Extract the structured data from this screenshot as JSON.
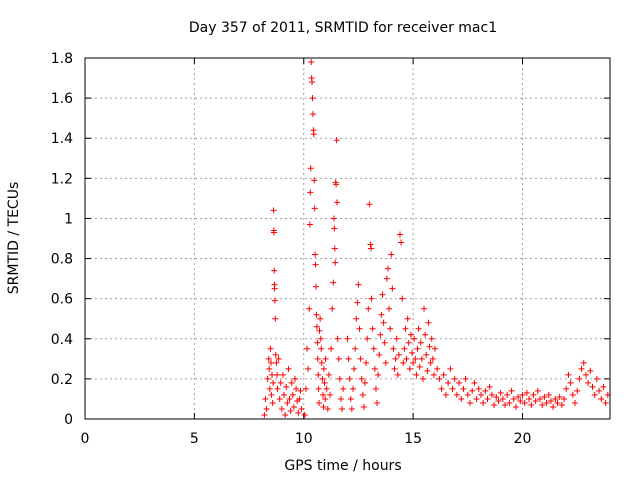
{
  "chart_data": {
    "type": "scatter",
    "title": "Day 357 of 2011, SRMTID for receiver mac1",
    "xlabel": "GPS time / hours",
    "ylabel": "SRMTID / TECUs",
    "xlim": [
      0,
      24
    ],
    "ylim": [
      0,
      1.8
    ],
    "xticks": [
      "0",
      "5",
      "10",
      "15",
      "20"
    ],
    "yticks": [
      "0",
      "0.2",
      "0.4",
      "0.6",
      "0.8",
      "1",
      "1.2",
      "1.4",
      "1.6",
      "1.8"
    ],
    "grid": true,
    "marker": "+",
    "color": "#ff0000",
    "series": [
      {
        "points": [
          [
            8.2,
            0.02
          ],
          [
            8.25,
            0.1
          ],
          [
            8.3,
            0.05
          ],
          [
            8.35,
            0.2
          ],
          [
            8.4,
            0.3
          ],
          [
            8.42,
            0.25
          ],
          [
            8.45,
            0.15
          ],
          [
            8.48,
            0.35
          ],
          [
            8.5,
            0.28
          ],
          [
            8.52,
            0.12
          ],
          [
            8.55,
            0.22
          ],
          [
            8.58,
            0.08
          ],
          [
            8.6,
            0.18
          ],
          [
            8.62,
            1.04
          ],
          [
            8.63,
            0.94
          ],
          [
            8.64,
            0.93
          ],
          [
            8.65,
            0.74
          ],
          [
            8.66,
            0.67
          ],
          [
            8.67,
            0.65
          ],
          [
            8.68,
            0.59
          ],
          [
            8.7,
            0.5
          ],
          [
            8.72,
            0.32
          ],
          [
            8.75,
            0.28
          ],
          [
            8.78,
            0.22
          ],
          [
            8.8,
            0.15
          ],
          [
            8.85,
            0.3
          ],
          [
            8.9,
            0.1
          ],
          [
            8.95,
            0.18
          ],
          [
            9.0,
            0.05
          ],
          [
            9.05,
            0.22
          ],
          [
            9.1,
            0.12
          ],
          [
            9.15,
            0.02
          ],
          [
            9.2,
            0.16
          ],
          [
            9.25,
            0.08
          ],
          [
            9.3,
            0.25
          ],
          [
            9.35,
            0.1
          ],
          [
            9.4,
            0.04
          ],
          [
            9.45,
            0.18
          ],
          [
            9.5,
            0.12
          ],
          [
            9.55,
            0.06
          ],
          [
            9.6,
            0.2
          ],
          [
            9.65,
            0.15
          ],
          [
            9.7,
            0.09
          ],
          [
            9.75,
            0.03
          ],
          [
            9.8,
            0.1
          ],
          [
            9.85,
            0.14
          ],
          [
            9.9,
            0.05
          ],
          [
            10.05,
            0.02
          ],
          [
            10.1,
            0.15
          ],
          [
            10.15,
            0.35
          ],
          [
            10.2,
            0.25
          ],
          [
            10.25,
            0.55
          ],
          [
            10.28,
            0.97
          ],
          [
            10.3,
            1.13
          ],
          [
            10.32,
            1.25
          ],
          [
            10.34,
            1.78
          ],
          [
            10.36,
            1.7
          ],
          [
            10.38,
            1.68
          ],
          [
            10.4,
            1.6
          ],
          [
            10.42,
            1.52
          ],
          [
            10.44,
            1.44
          ],
          [
            10.46,
            1.42
          ],
          [
            10.48,
            1.19
          ],
          [
            10.5,
            1.05
          ],
          [
            10.52,
            0.82
          ],
          [
            10.54,
            0.77
          ],
          [
            10.56,
            0.66
          ],
          [
            10.58,
            0.52
          ],
          [
            10.6,
            0.46
          ],
          [
            10.62,
            0.38
          ],
          [
            10.64,
            0.3
          ],
          [
            10.66,
            0.22
          ],
          [
            10.68,
            0.15
          ],
          [
            10.7,
            0.08
          ],
          [
            10.72,
            0.44
          ],
          [
            10.75,
            0.5
          ],
          [
            10.78,
            0.4
          ],
          [
            10.8,
            0.35
          ],
          [
            10.82,
            0.28
          ],
          [
            10.85,
            0.2
          ],
          [
            10.88,
            0.12
          ],
          [
            10.9,
            0.06
          ],
          [
            10.92,
            0.25
          ],
          [
            10.95,
            0.18
          ],
          [
            10.98,
            0.1
          ],
          [
            11.0,
            0.3
          ],
          [
            11.05,
            0.15
          ],
          [
            11.1,
            0.05
          ],
          [
            11.15,
            0.22
          ],
          [
            11.2,
            0.12
          ],
          [
            11.25,
            0.35
          ],
          [
            11.3,
            0.55
          ],
          [
            11.35,
            0.68
          ],
          [
            11.38,
            1.0
          ],
          [
            11.4,
            0.95
          ],
          [
            11.42,
            0.85
          ],
          [
            11.44,
            0.78
          ],
          [
            11.46,
            1.18
          ],
          [
            11.48,
            1.17
          ],
          [
            11.5,
            1.39
          ],
          [
            11.52,
            1.08
          ],
          [
            11.55,
            0.4
          ],
          [
            11.6,
            0.3
          ],
          [
            11.65,
            0.2
          ],
          [
            11.7,
            0.1
          ],
          [
            11.75,
            0.05
          ],
          [
            11.8,
            0.15
          ],
          [
            12.0,
            0.4
          ],
          [
            12.05,
            0.3
          ],
          [
            12.1,
            0.2
          ],
          [
            12.15,
            0.1
          ],
          [
            12.2,
            0.05
          ],
          [
            12.25,
            0.15
          ],
          [
            12.3,
            0.25
          ],
          [
            12.35,
            0.35
          ],
          [
            12.4,
            0.5
          ],
          [
            12.45,
            0.58
          ],
          [
            12.5,
            0.67
          ],
          [
            12.55,
            0.45
          ],
          [
            12.6,
            0.3
          ],
          [
            12.65,
            0.2
          ],
          [
            12.7,
            0.12
          ],
          [
            12.75,
            0.06
          ],
          [
            12.8,
            0.18
          ],
          [
            12.85,
            0.28
          ],
          [
            12.9,
            0.4
          ],
          [
            12.95,
            0.55
          ],
          [
            13.0,
            1.07
          ],
          [
            13.05,
            0.87
          ],
          [
            13.08,
            0.85
          ],
          [
            13.1,
            0.6
          ],
          [
            13.15,
            0.45
          ],
          [
            13.2,
            0.35
          ],
          [
            13.25,
            0.25
          ],
          [
            13.3,
            0.15
          ],
          [
            13.35,
            0.08
          ],
          [
            13.4,
            0.22
          ],
          [
            13.45,
            0.32
          ],
          [
            13.5,
            0.42
          ],
          [
            13.55,
            0.52
          ],
          [
            13.6,
            0.62
          ],
          [
            13.65,
            0.48
          ],
          [
            13.7,
            0.38
          ],
          [
            13.75,
            0.28
          ],
          [
            13.8,
            0.7
          ],
          [
            13.85,
            0.75
          ],
          [
            13.9,
            0.55
          ],
          [
            13.95,
            0.45
          ],
          [
            14.0,
            0.82
          ],
          [
            14.05,
            0.65
          ],
          [
            14.1,
            0.35
          ],
          [
            14.15,
            0.25
          ],
          [
            14.2,
            0.3
          ],
          [
            14.25,
            0.4
          ],
          [
            14.3,
            0.22
          ],
          [
            14.35,
            0.32
          ],
          [
            14.4,
            0.92
          ],
          [
            14.45,
            0.88
          ],
          [
            14.5,
            0.6
          ],
          [
            14.55,
            0.28
          ],
          [
            14.6,
            0.35
          ],
          [
            14.65,
            0.45
          ],
          [
            14.7,
            0.3
          ],
          [
            14.75,
            0.5
          ],
          [
            14.8,
            0.38
          ],
          [
            14.85,
            0.25
          ],
          [
            14.9,
            0.42
          ],
          [
            14.95,
            0.33
          ],
          [
            15.0,
            0.28
          ],
          [
            15.05,
            0.4
          ],
          [
            15.1,
            0.3
          ],
          [
            15.15,
            0.22
          ],
          [
            15.2,
            0.35
          ],
          [
            15.25,
            0.45
          ],
          [
            15.3,
            0.26
          ],
          [
            15.35,
            0.38
          ],
          [
            15.4,
            0.3
          ],
          [
            15.45,
            0.2
          ],
          [
            15.5,
            0.55
          ],
          [
            15.55,
            0.42
          ],
          [
            15.6,
            0.32
          ],
          [
            15.65,
            0.24
          ],
          [
            15.7,
            0.48
          ],
          [
            15.75,
            0.36
          ],
          [
            15.8,
            0.28
          ],
          [
            15.85,
            0.4
          ],
          [
            15.9,
            0.3
          ],
          [
            15.95,
            0.22
          ],
          [
            16.0,
            0.35
          ],
          [
            16.1,
            0.25
          ],
          [
            16.2,
            0.2
          ],
          [
            16.3,
            0.15
          ],
          [
            16.4,
            0.22
          ],
          [
            16.5,
            0.12
          ],
          [
            16.6,
            0.18
          ],
          [
            16.7,
            0.25
          ],
          [
            16.8,
            0.15
          ],
          [
            16.9,
            0.2
          ],
          [
            17.0,
            0.12
          ],
          [
            17.1,
            0.18
          ],
          [
            17.2,
            0.1
          ],
          [
            17.3,
            0.15
          ],
          [
            17.4,
            0.2
          ],
          [
            17.5,
            0.12
          ],
          [
            17.6,
            0.08
          ],
          [
            17.7,
            0.14
          ],
          [
            17.8,
            0.18
          ],
          [
            17.9,
            0.1
          ],
          [
            18.0,
            0.15
          ],
          [
            18.1,
            0.12
          ],
          [
            18.2,
            0.08
          ],
          [
            18.3,
            0.14
          ],
          [
            18.4,
            0.1
          ],
          [
            18.5,
            0.16
          ],
          [
            18.6,
            0.12
          ],
          [
            18.7,
            0.07
          ],
          [
            18.8,
            0.11
          ],
          [
            18.9,
            0.09
          ],
          [
            19.0,
            0.13
          ],
          [
            19.1,
            0.1
          ],
          [
            19.2,
            0.07
          ],
          [
            19.3,
            0.12
          ],
          [
            19.4,
            0.08
          ],
          [
            19.5,
            0.14
          ],
          [
            19.6,
            0.1
          ],
          [
            19.7,
            0.06
          ],
          [
            19.8,
            0.11
          ],
          [
            19.9,
            0.09
          ],
          [
            20.0,
            0.12
          ],
          [
            20.1,
            0.08
          ],
          [
            20.2,
            0.13
          ],
          [
            20.3,
            0.1
          ],
          [
            20.4,
            0.07
          ],
          [
            20.5,
            0.12
          ],
          [
            20.6,
            0.09
          ],
          [
            20.7,
            0.14
          ],
          [
            20.8,
            0.1
          ],
          [
            20.9,
            0.07
          ],
          [
            21.0,
            0.11
          ],
          [
            21.1,
            0.08
          ],
          [
            21.2,
            0.12
          ],
          [
            21.3,
            0.09
          ],
          [
            21.4,
            0.06
          ],
          [
            21.5,
            0.1
          ],
          [
            21.6,
            0.08
          ],
          [
            21.7,
            0.11
          ],
          [
            21.8,
            0.07
          ],
          [
            21.9,
            0.1
          ],
          [
            22.0,
            0.15
          ],
          [
            22.1,
            0.22
          ],
          [
            22.2,
            0.18
          ],
          [
            22.3,
            0.12
          ],
          [
            22.4,
            0.08
          ],
          [
            22.5,
            0.14
          ],
          [
            22.6,
            0.2
          ],
          [
            22.7,
            0.25
          ],
          [
            22.8,
            0.28
          ],
          [
            22.9,
            0.22
          ],
          [
            23.0,
            0.18
          ],
          [
            23.1,
            0.24
          ],
          [
            23.2,
            0.16
          ],
          [
            23.3,
            0.12
          ],
          [
            23.4,
            0.2
          ],
          [
            23.5,
            0.14
          ],
          [
            23.6,
            0.1
          ],
          [
            23.7,
            0.16
          ],
          [
            23.8,
            0.08
          ],
          [
            23.9,
            0.12
          ]
        ]
      }
    ]
  }
}
